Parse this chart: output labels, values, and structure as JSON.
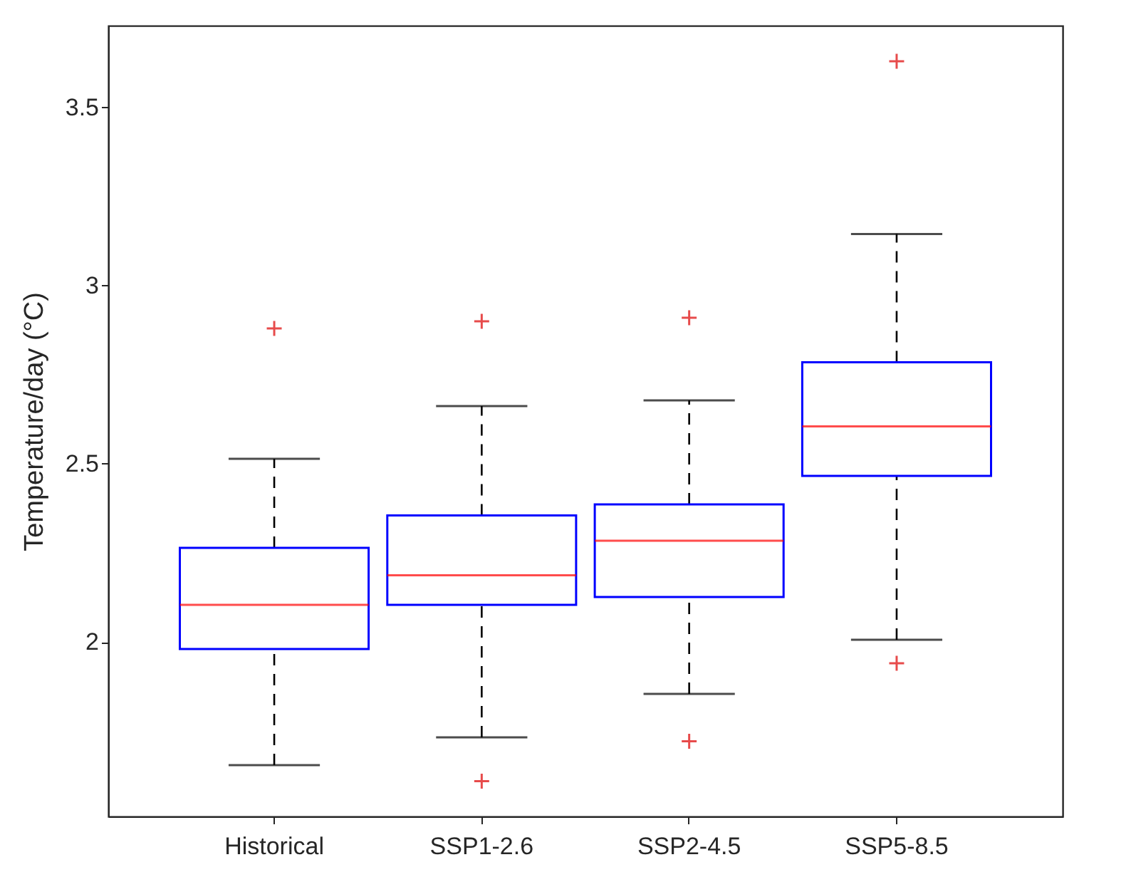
{
  "chart_data": {
    "type": "box",
    "ylabel": "Temperature/day (°C)",
    "categories": [
      "Historical",
      "SSP1-2.6",
      "SSP2-4.5",
      "SSP5-8.5"
    ],
    "series": [
      {
        "color": "#0000ff",
        "boxes": [
          {
            "low": 1.654,
            "q1": 1.98,
            "median": 2.104,
            "q3": 2.264,
            "high": 2.514,
            "outliers": [
              2.88
            ]
          },
          {
            "low": 1.732,
            "q1": 2.104,
            "median": 2.187,
            "q3": 2.355,
            "high": 2.662,
            "outliers": [
              2.9,
              1.609
            ]
          },
          {
            "low": 1.854,
            "q1": 2.126,
            "median": 2.284,
            "q3": 2.386,
            "high": 2.678,
            "outliers": [
              2.91,
              1.721
            ]
          },
          {
            "low": 2.006,
            "q1": 2.466,
            "median": 2.605,
            "q3": 2.785,
            "high": 3.145,
            "outliers": [
              3.63,
              1.94
            ]
          }
        ]
      }
    ],
    "ylim": [
      1.51,
      3.73
    ],
    "yticks": [
      2,
      2.5,
      3,
      3.5
    ],
    "marker": "cross",
    "grid": false
  }
}
